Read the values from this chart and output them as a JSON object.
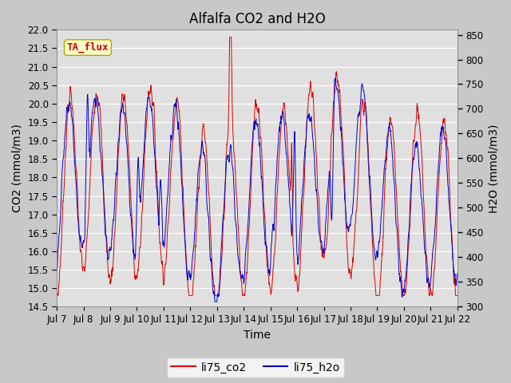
{
  "title": "Alfalfa CO2 and H2O",
  "xlabel": "Time",
  "ylabel_left": "CO2 (mmol/m3)",
  "ylabel_right": "H2O (mmol/m3)",
  "ylim_left": [
    14.5,
    22.0
  ],
  "ylim_right": [
    300,
    860
  ],
  "yticks_left": [
    14.5,
    15.0,
    15.5,
    16.0,
    16.5,
    17.0,
    17.5,
    18.0,
    18.5,
    19.0,
    19.5,
    20.0,
    20.5,
    21.0,
    21.5,
    22.0
  ],
  "yticks_right": [
    300,
    350,
    400,
    450,
    500,
    550,
    600,
    650,
    700,
    750,
    800,
    850
  ],
  "xtick_labels": [
    "Jul 7",
    "Jul 8",
    "Jul 9",
    "Jul 10",
    "Jul 11",
    "Jul 12",
    "Jul 13",
    "Jul 14",
    "Jul 15",
    "Jul 16",
    "Jul 17",
    "Jul 18",
    "Jul 19",
    "Jul 20",
    "Jul 21",
    "Jul 22"
  ],
  "color_co2": "#dd0000",
  "color_h2o": "#0000cc",
  "legend_label_co2": "li75_co2",
  "legend_label_h2o": "li75_h2o",
  "annotation_text": "TA_flux",
  "annotation_color": "#cc0000",
  "annotation_bg": "#ffffcc",
  "annotation_edge": "#aaaa00",
  "fig_bg_color": "#c8c8c8",
  "plot_bg_color": "#e0e0e0",
  "grid_color": "#ffffff",
  "title_fontsize": 12,
  "axis_label_fontsize": 10,
  "tick_label_fontsize": 8.5
}
